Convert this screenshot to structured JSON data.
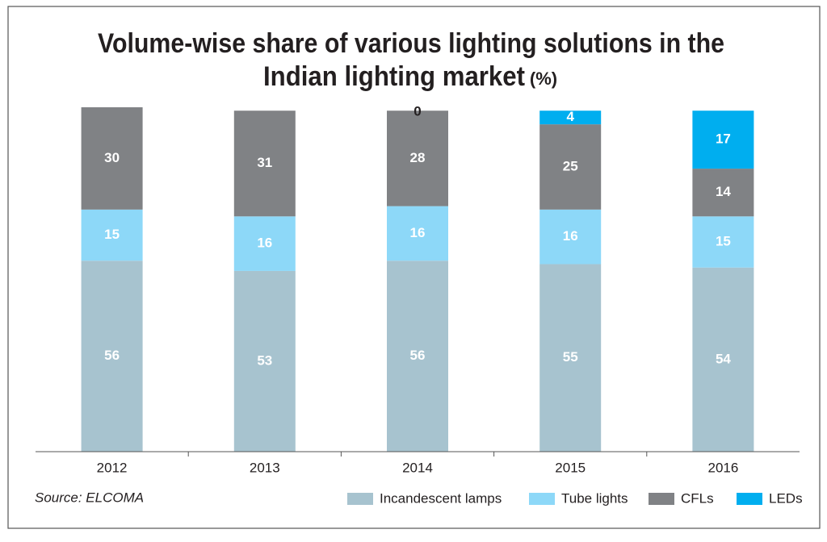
{
  "chart_data": {
    "type": "stacked_bar",
    "title": [
      "Volume-wise share of various lighting solutions in the",
      "Indian lighting market"
    ],
    "title_unit": "(%)",
    "source": "Source: ELCOMA",
    "categories": [
      "2012",
      "2013",
      "2014",
      "2015",
      "2016"
    ],
    "series": [
      {
        "name": "Incandescent lamps",
        "color": "#a7c3cf",
        "values": [
          56,
          53,
          56,
          55,
          54
        ]
      },
      {
        "name": "Tube lights",
        "color": "#8dd8f8",
        "values": [
          15,
          16,
          16,
          16,
          15
        ]
      },
      {
        "name": "CFLs",
        "color": "#808285",
        "values": [
          30,
          31,
          28,
          25,
          14
        ]
      },
      {
        "name": "LEDs",
        "color": "#00aeef",
        "values": [
          null,
          null,
          0,
          4,
          17
        ]
      }
    ]
  }
}
